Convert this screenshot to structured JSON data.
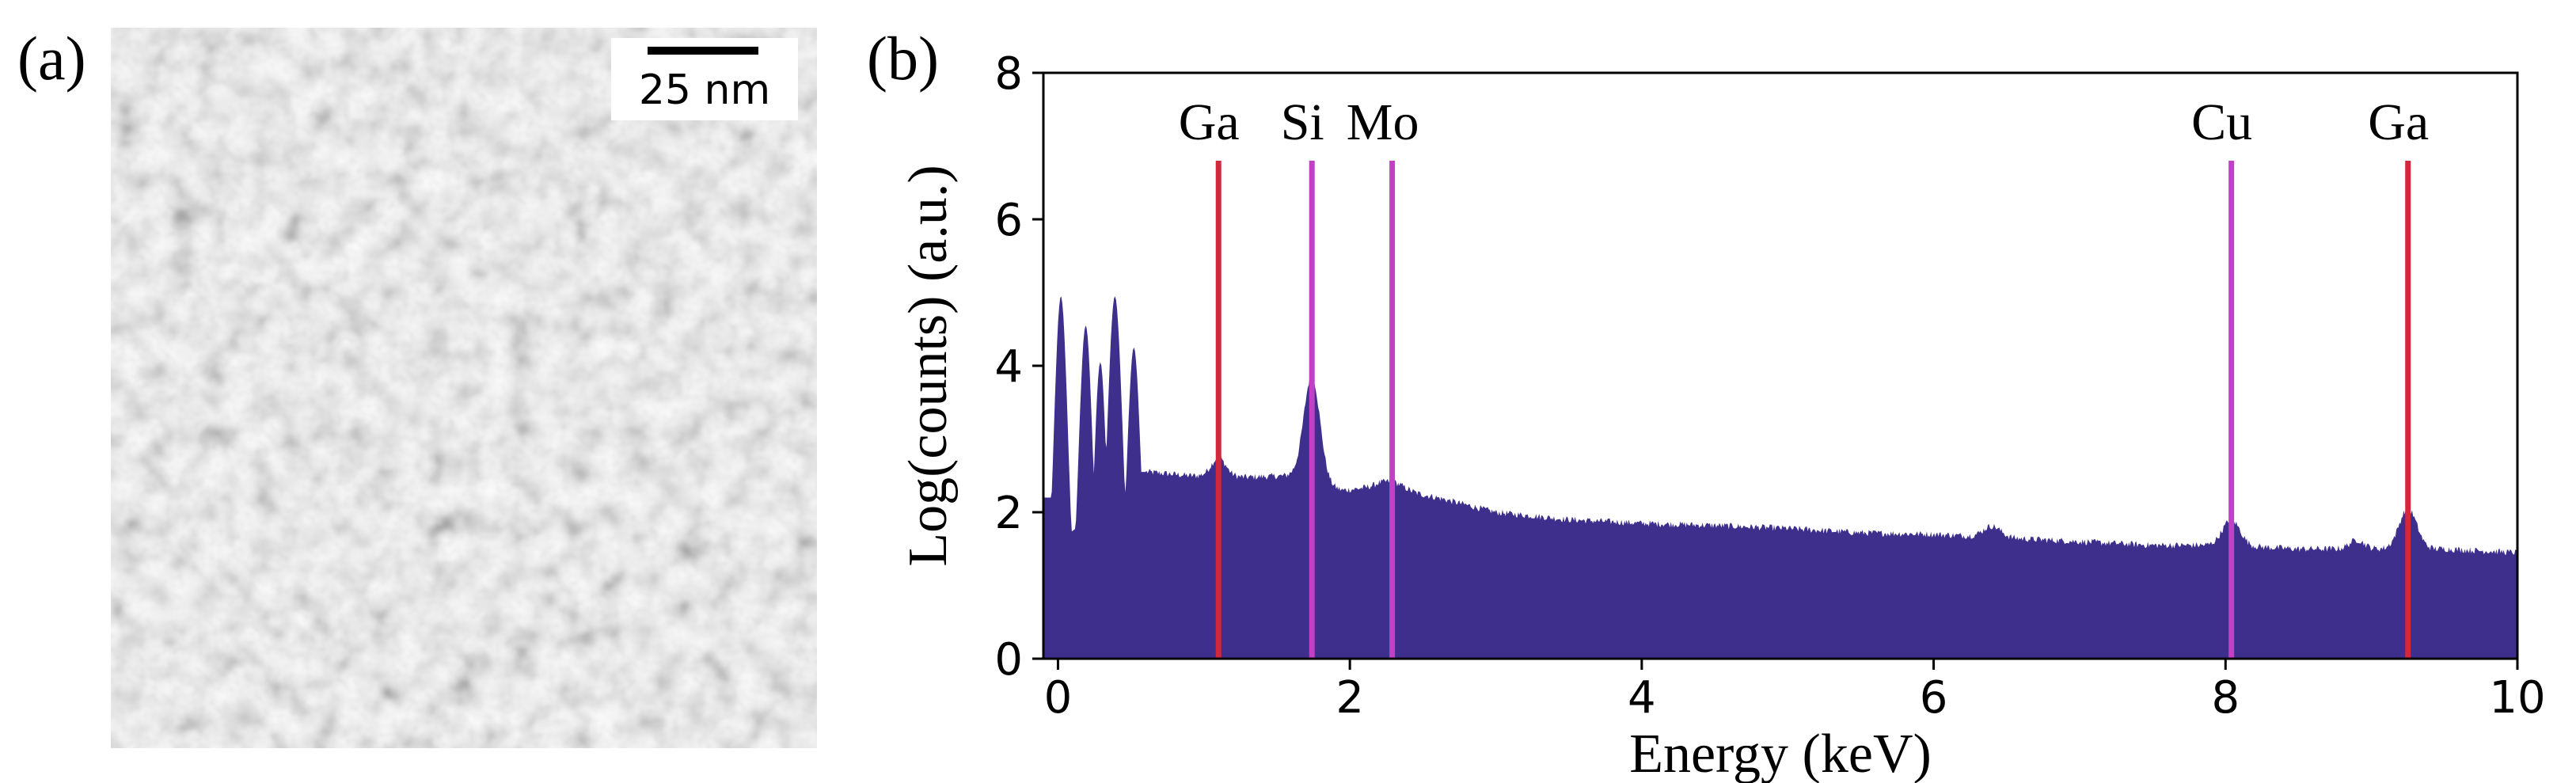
{
  "panels": {
    "a": {
      "label": "(a)",
      "scale_bar_text": "25 nm",
      "image_description_icon": "stem-micrograph-texture"
    },
    "b": {
      "label": "(b)"
    }
  },
  "chart_data": {
    "type": "area",
    "title": "",
    "xlabel": "Energy (keV)",
    "ylabel": "Log(counts) (a.u.)",
    "xlim": [
      -0.1,
      10
    ],
    "ylim": [
      0,
      8
    ],
    "xticks": [
      0,
      2,
      4,
      6,
      8,
      10
    ],
    "xtick_labels": [
      "0",
      "2",
      "4",
      "6",
      "8",
      "10"
    ],
    "yticks": [
      0,
      2,
      4,
      6,
      8
    ],
    "ytick_labels": [
      "0",
      "2",
      "4",
      "6",
      "8"
    ],
    "fill_color": "#3f2f8c",
    "background_level": [
      [
        0.62,
        2.55
      ],
      [
        0.9,
        2.5
      ],
      [
        1.3,
        2.48
      ],
      [
        1.6,
        2.5
      ],
      [
        1.95,
        2.3
      ],
      [
        2.2,
        2.35
      ],
      [
        2.6,
        2.2
      ],
      [
        3.0,
        2.0
      ],
      [
        3.5,
        1.9
      ],
      [
        4.0,
        1.85
      ],
      [
        4.5,
        1.82
      ],
      [
        5.0,
        1.78
      ],
      [
        5.5,
        1.72
      ],
      [
        6.0,
        1.7
      ],
      [
        6.5,
        1.65
      ],
      [
        7.0,
        1.6
      ],
      [
        7.5,
        1.55
      ],
      [
        8.0,
        1.55
      ],
      [
        8.5,
        1.5
      ],
      [
        9.0,
        1.5
      ],
      [
        9.5,
        1.5
      ],
      [
        10.0,
        1.45
      ]
    ],
    "low_energy_peaks": [
      {
        "center": 0.02,
        "height": 4.95,
        "width": 0.05
      },
      {
        "center": 0.19,
        "height": 4.55,
        "width": 0.05
      },
      {
        "center": 0.29,
        "height": 4.05,
        "width": 0.045
      },
      {
        "center": 0.39,
        "height": 4.95,
        "width": 0.055
      },
      {
        "center": 0.52,
        "height": 4.25,
        "width": 0.05
      }
    ],
    "peaks": [
      {
        "center": 1.1,
        "height": 0.25,
        "width": 0.05
      },
      {
        "center": 1.74,
        "height": 1.45,
        "width": 0.055
      },
      {
        "center": 2.29,
        "height": 0.1,
        "width": 0.08
      },
      {
        "center": 6.4,
        "height": 0.15,
        "width": 0.06
      },
      {
        "center": 8.04,
        "height": 0.35,
        "width": 0.06
      },
      {
        "center": 8.9,
        "height": 0.12,
        "width": 0.05
      },
      {
        "center": 9.25,
        "height": 0.55,
        "width": 0.06
      }
    ],
    "annotations": [
      {
        "element": "Ga",
        "energy": 1.1,
        "color": "#d1283b"
      },
      {
        "element": "Si",
        "energy": 1.74,
        "color": "#c33fc5"
      },
      {
        "element": "Mo",
        "energy": 2.29,
        "color": "#c33fc5"
      },
      {
        "element": "Cu",
        "energy": 8.04,
        "color": "#c33fc5"
      },
      {
        "element": "Ga",
        "energy": 9.25,
        "color": "#d1283b"
      }
    ],
    "annotation_line_top": 6.8
  }
}
